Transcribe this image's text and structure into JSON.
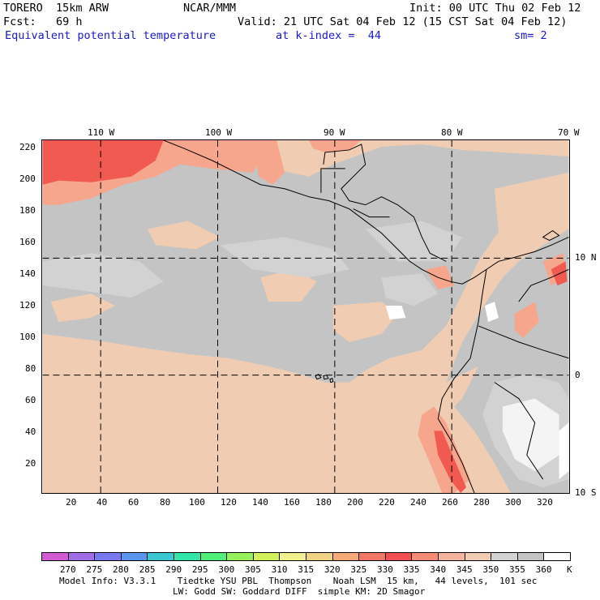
{
  "header": {
    "model": "TORERO  15km ARW",
    "center": "NCAR/MMM",
    "init": "Init: 00 UTC Thu 02 Feb 12",
    "fcst": "Fcst:   69 h",
    "valid": "Valid: 21 UTC Sat 04 Feb 12 (15 CST Sat 04 Feb 12)",
    "field": "Equivalent potential temperature",
    "level": "at k-index =  44",
    "smooth": "sm= 2"
  },
  "map": {
    "top_lon_labels": [
      "110 W",
      "100 W",
      "90 W",
      "80 W",
      "70 W"
    ],
    "right_lat_labels": [
      "10 N",
      "0",
      "10 S"
    ],
    "y_ticks": [
      "220",
      "200",
      "180",
      "160",
      "140",
      "120",
      "100",
      "80",
      "60",
      "40",
      "20"
    ],
    "x_ticks": [
      "20",
      "40",
      "60",
      "80",
      "100",
      "120",
      "140",
      "160",
      "180",
      "200",
      "220",
      "240",
      "260",
      "280",
      "300",
      "320"
    ],
    "colors": {
      "ocean_warm": "#f0cdb2",
      "gray": "#c4c4c4",
      "light_gray": "#d2d2d2",
      "salmon": "#f6a68c",
      "red": "#f05a50",
      "white": "#ffffff"
    }
  },
  "colorbar": {
    "labels": [
      "270",
      "275",
      "280",
      "285",
      "290",
      "295",
      "300",
      "305",
      "310",
      "315",
      "320",
      "325",
      "330",
      "335",
      "340",
      "345",
      "350",
      "355",
      "360",
      "K"
    ],
    "colors": [
      "#d25ad2",
      "#a06ee6",
      "#7878f0",
      "#5a96f0",
      "#3cc8d2",
      "#32e6aa",
      "#50f078",
      "#96f05a",
      "#d2f05a",
      "#f0f08c",
      "#f0d282",
      "#f5aa78",
      "#f07864",
      "#f05050",
      "#f48c78",
      "#f5b4a0",
      "#f0cdb2",
      "#d2d2d2",
      "#c4c4c4",
      "#ffffff"
    ]
  },
  "footer": {
    "line1": "Model Info: V3.3.1    Tiedtke YSU PBL  Thompson    Noah LSM  15 km,   44 levels,  101 sec",
    "line2": "LW: Godd SW: Goddard DIFF  simple KM: 2D Smagor"
  }
}
